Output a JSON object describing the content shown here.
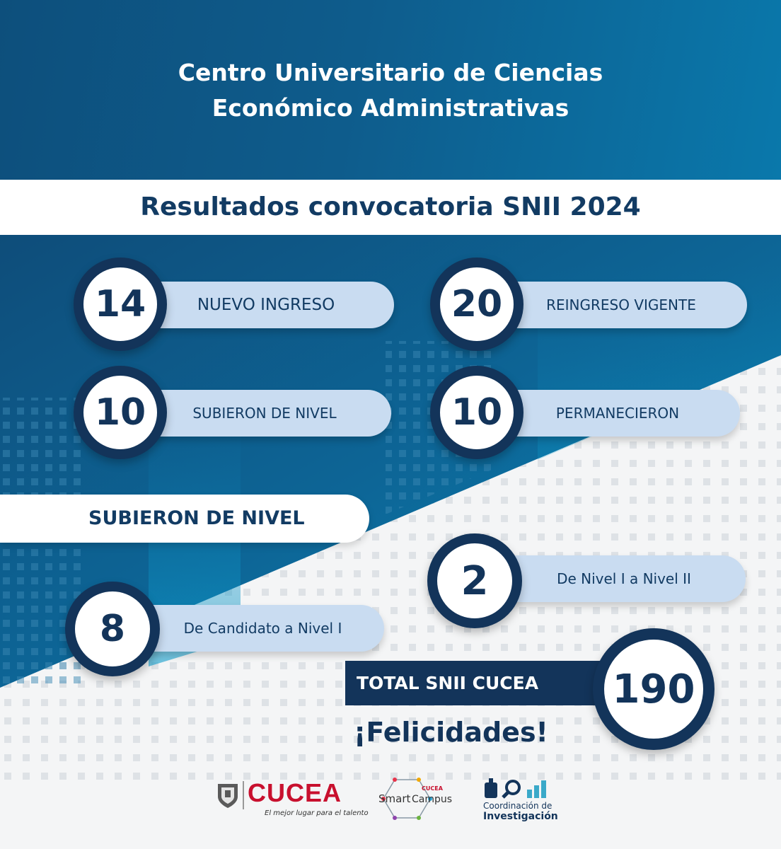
{
  "header": {
    "title_line1": "Centro Universitario de Ciencias",
    "title_line2": "Económico Administrativas"
  },
  "subtitle": "Resultados convocatoria SNII 2024",
  "stats": [
    {
      "value": "14",
      "label": "NUEVO INGRESO"
    },
    {
      "value": "20",
      "label": "REINGRESO VIGENTE"
    },
    {
      "value": "10",
      "label": "SUBIERON DE NIVEL"
    },
    {
      "value": "10",
      "label": "PERMANECIERON"
    }
  ],
  "level_section": {
    "title": "SUBIERON DE NIVEL",
    "items": [
      {
        "value": "2",
        "label": "De Nivel I a Nivel II"
      },
      {
        "value": "8",
        "label": "De Candidato a Nivel I"
      }
    ]
  },
  "total": {
    "label": "TOTAL SNII CUCEA",
    "value": "190"
  },
  "congrats": "¡Felicidades!",
  "logos": {
    "cucea_name": "CUCEA",
    "cucea_tagline": "El mejor lugar para el talento",
    "smart_campus_word1": "Smart",
    "smart_campus_brand": "CUCEA",
    "smart_campus_word2": "Campus",
    "coordinacion_line1": "Coordinación de",
    "coordinacion_line2": "Investigación"
  },
  "colors": {
    "navy": "#13345a",
    "blue_header": "#0e5c8c",
    "pill_light": "#c9dcf1",
    "cucea_red": "#c8102e",
    "cucea_gold": "#f2a900"
  }
}
